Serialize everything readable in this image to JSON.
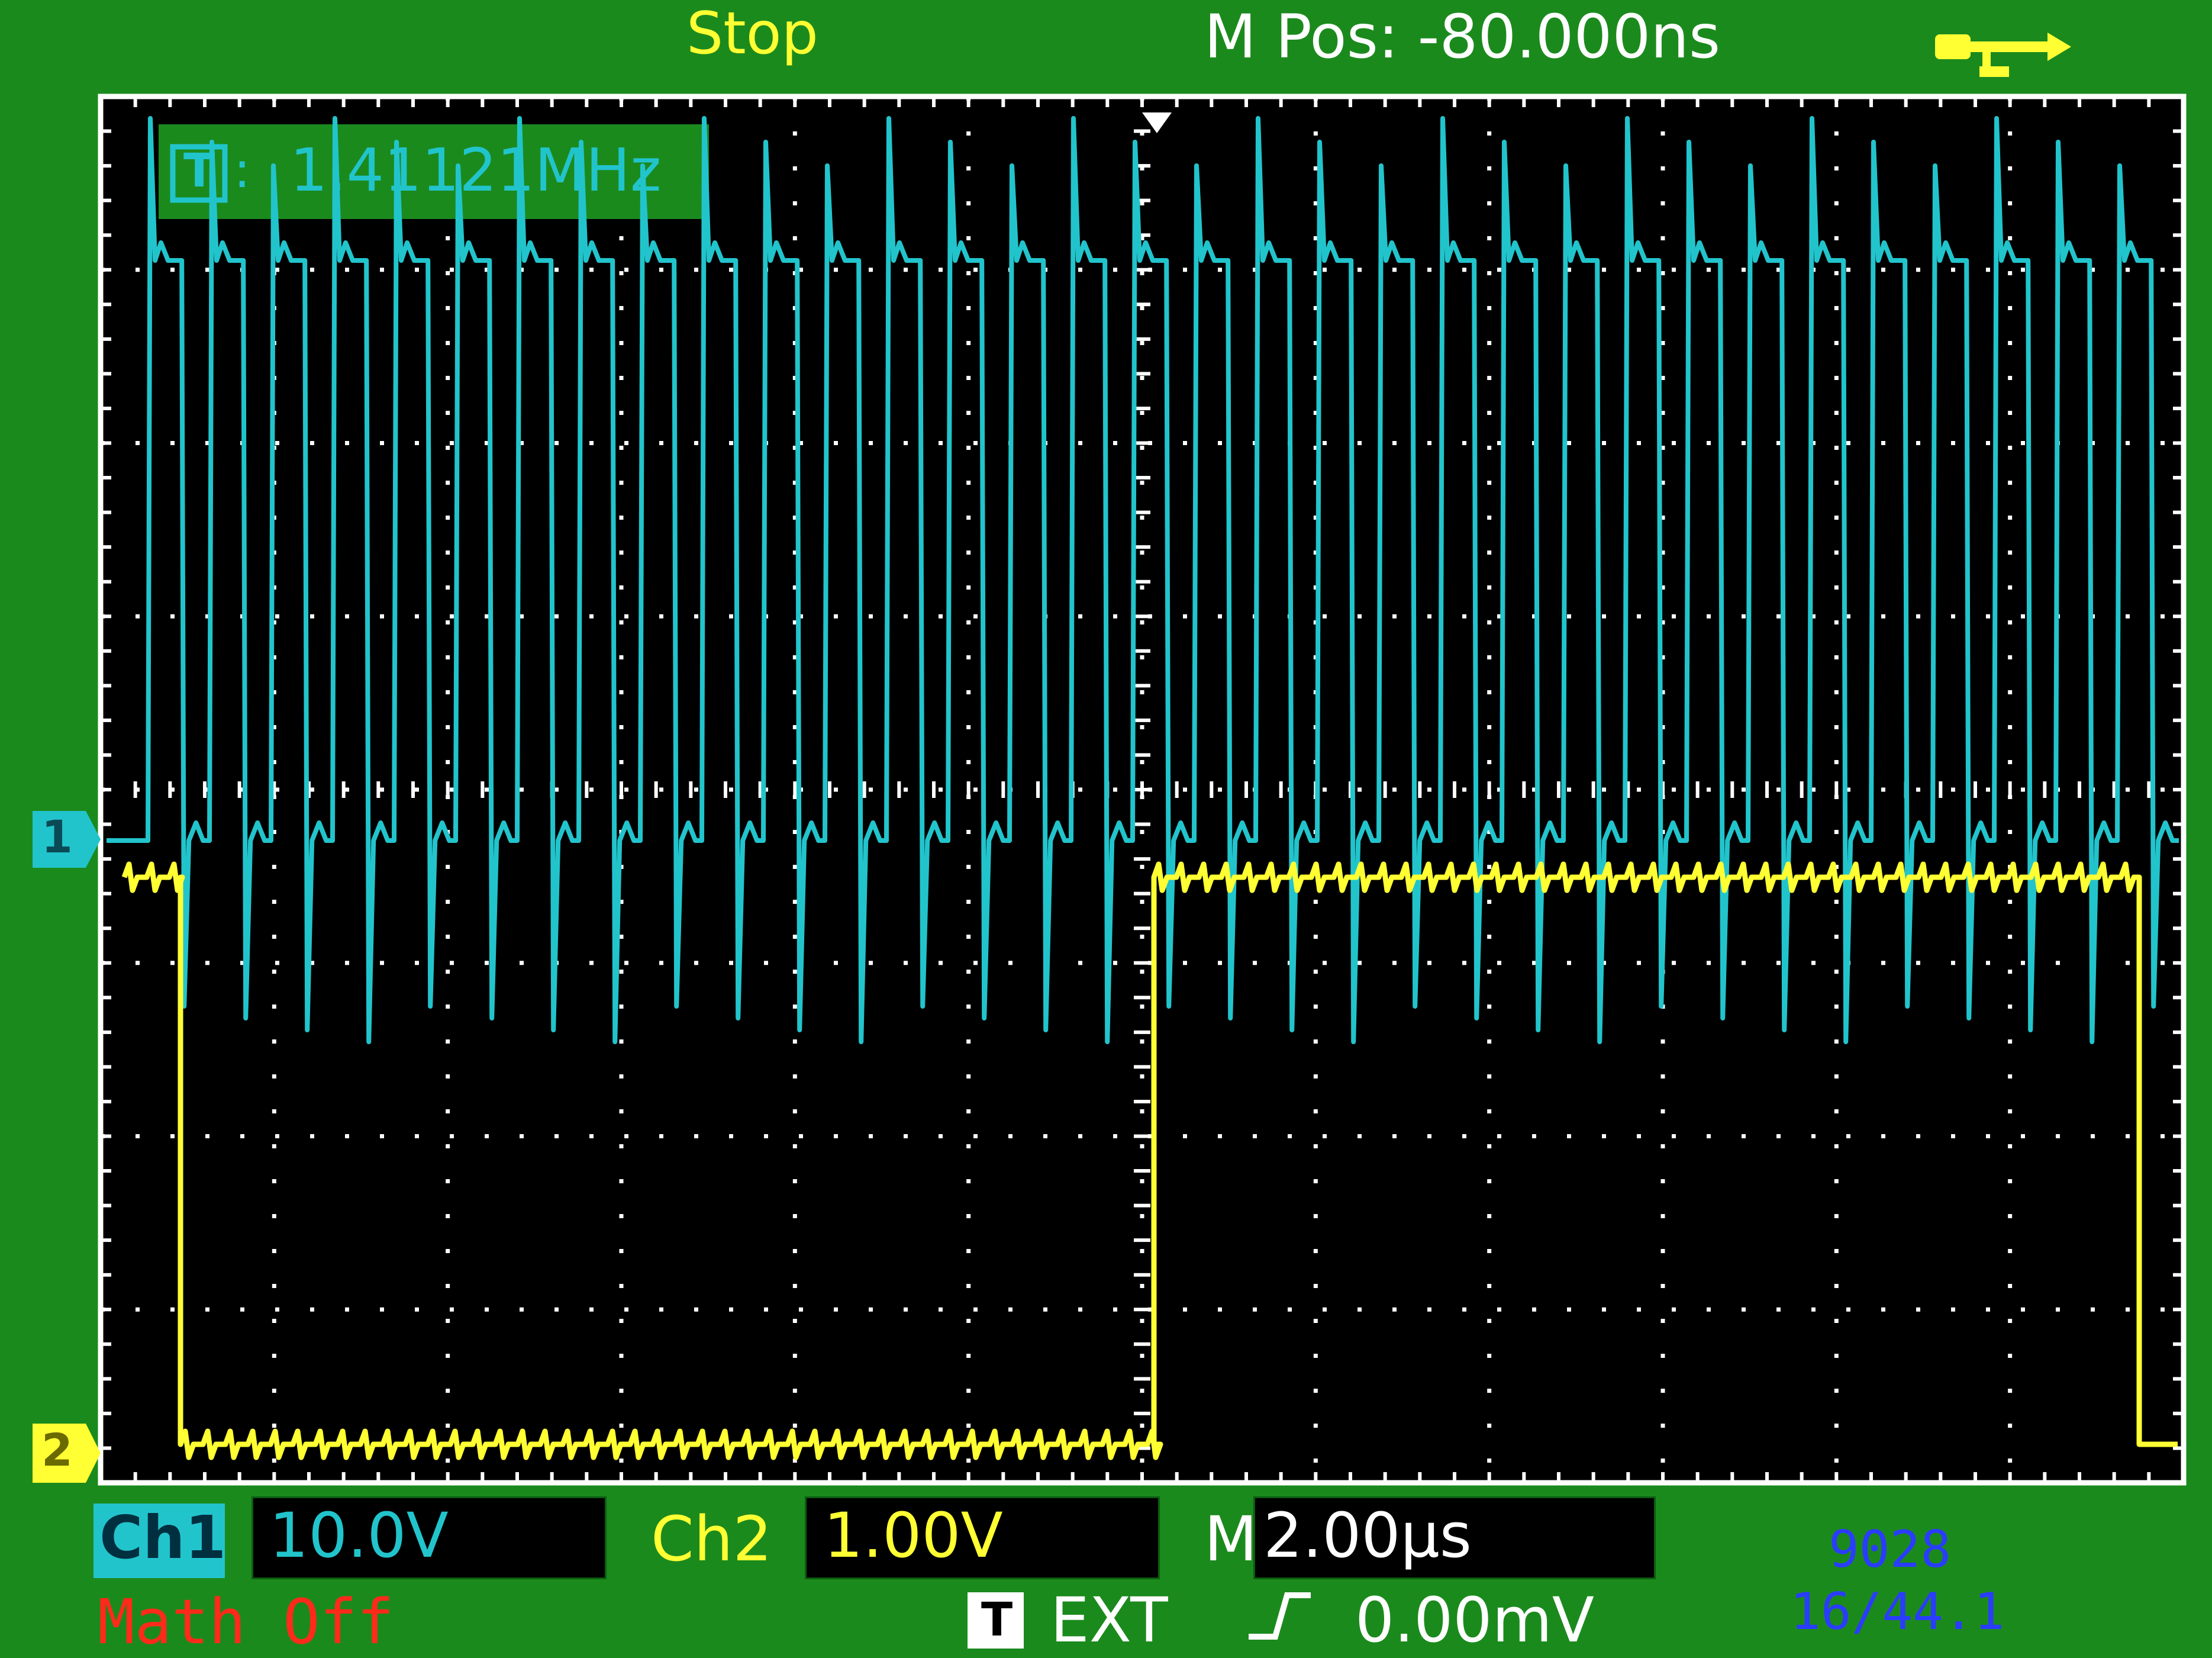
{
  "header": {
    "run_state": "Stop",
    "m_pos": "M Pos: -80.000ns",
    "usb_icon": "usb-icon"
  },
  "frequency_readout": {
    "trigger_tag": "T",
    "separator": ":",
    "value": "1.41121MHz"
  },
  "channel_markers": {
    "ch1": "1",
    "ch2": "2"
  },
  "bottom_bar": {
    "ch1_label": "Ch1",
    "ch1_scale": "10.0V",
    "ch2_label": "Ch2",
    "ch2_scale": "1.00V",
    "time_label": "M",
    "time_scale": "2.00µs",
    "math": "Math Off",
    "trigger_tag": "T",
    "trigger_source": "EXT",
    "trigger_slope_icon": "rising-edge-icon",
    "trigger_level": "0.00mV"
  },
  "overlay": {
    "line1": "9028",
    "line2": "16/44.1"
  },
  "colors": {
    "background": "#1b8a1d",
    "grid": "#ffffff",
    "ch1": "#22c4cc",
    "ch2": "#ffff33",
    "math": "#ff2a1a",
    "overlay": "#2a3cff"
  }
}
